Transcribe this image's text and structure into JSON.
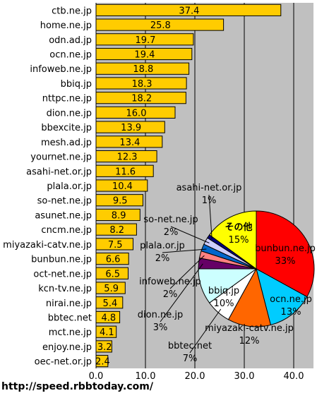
{
  "chart_data": [
    {
      "type": "bar",
      "orientation": "horizontal",
      "categories": [
        "ctb.ne.jp",
        "home.ne.jp",
        "odn.ad.jp",
        "ocn.ne.jp",
        "infoweb.ne.jp",
        "bbiq.jp",
        "nttpc.ne.jp",
        "dion.ne.jp",
        "bbexcite.jp",
        "mesh.ad.jp",
        "yournet.ne.jp",
        "asahi-net.or.jp",
        "plala.or.jp",
        "so-net.ne.jp",
        "asunet.ne.jp",
        "cncm.ne.jp",
        "miyazaki-catv.ne.jp",
        "bunbun.ne.jp",
        "oct-net.ne.jp",
        "kcn-tv.ne.jp",
        "nirai.ne.jp",
        "bbtec.net",
        "mct.ne.jp",
        "enjoy.ne.jp",
        "oec-net.or.jp"
      ],
      "values": [
        37.4,
        25.8,
        19.7,
        19.4,
        18.8,
        18.3,
        18.2,
        16.0,
        13.9,
        13.4,
        12.3,
        11.6,
        10.4,
        9.5,
        8.9,
        8.2,
        7.5,
        6.6,
        6.5,
        5.9,
        5.4,
        4.8,
        4.1,
        3.2,
        2.4
      ],
      "value_labels": [
        "37.4",
        "25.8",
        "19.7",
        "19.4",
        "18.8",
        "18.3",
        "18.2",
        "16.0",
        "13.9",
        "13.4",
        "12.3",
        "11.6",
        "10.4",
        "9.5",
        "8.9",
        "8.2",
        "7.5",
        "6.6",
        "6.5",
        "5.9",
        "5.4",
        "4.8",
        "4.1",
        "3.2",
        "2.4"
      ],
      "xlim": [
        0,
        44
      ],
      "xticks": [
        0,
        10,
        20,
        30,
        40
      ],
      "xtick_labels": [
        "0.0",
        "10.0",
        "20.0",
        "30.0",
        "40.0"
      ],
      "grid": "vertical",
      "bar_color": "#FFCC00",
      "plot_background": "#C0C0C0",
      "title": "",
      "xlabel": "",
      "ylabel": ""
    },
    {
      "type": "pie",
      "slices": [
        {
          "label": "bunbun.ne.jp",
          "pct": "33%",
          "value": 33,
          "color": "#FF0000"
        },
        {
          "label": "ocn.ne.jp",
          "pct": "13%",
          "value": 13,
          "color": "#00CCFF"
        },
        {
          "label": "miyazaki-catv.ne.jp",
          "pct": "12%",
          "value": 12,
          "color": "#FF6600"
        },
        {
          "label": "bbtec.net",
          "pct": "7%",
          "value": 7,
          "color": "#FFFFFF"
        },
        {
          "label": "bbiq.jp",
          "pct": "10%",
          "value": 10,
          "color": "#CCFFFF"
        },
        {
          "label": "dion.ne.jp",
          "pct": "3%",
          "value": 3,
          "color": "#660066"
        },
        {
          "label": "infoweb.ne.jp",
          "pct": "2%",
          "value": 2,
          "color": "#FF8080"
        },
        {
          "label": "plala.or.jp",
          "pct": "2%",
          "value": 2,
          "color": "#0066CC"
        },
        {
          "label": "so-net.ne.jp",
          "pct": "2%",
          "value": 2,
          "color": "#CCCCFF"
        },
        {
          "label": "asahi-net.or.jp",
          "pct": "1%",
          "value": 1,
          "color": "#000080"
        },
        {
          "label": "その他",
          "pct": "15%",
          "value": 15,
          "color": "#FFFF00"
        }
      ]
    }
  ],
  "footer": "http://speed.rbbtoday.com/"
}
